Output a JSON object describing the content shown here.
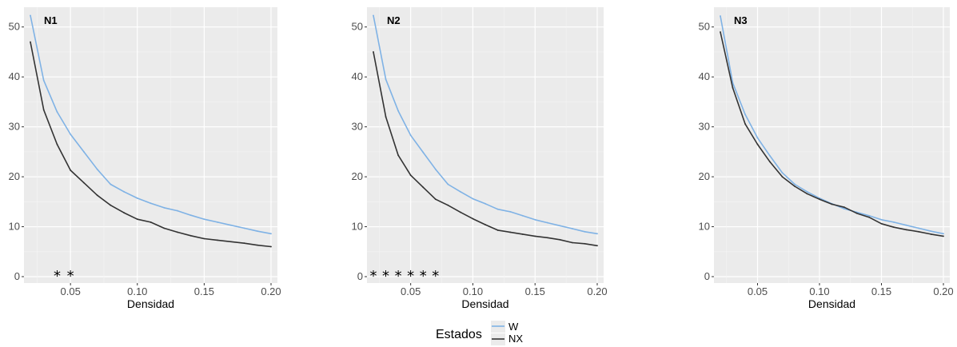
{
  "chart_data": [
    {
      "type": "line",
      "title": "N1",
      "xlabel": "Densidad",
      "ylabel": "",
      "xlim": [
        0.02,
        0.2
      ],
      "ylim": [
        0,
        53
      ],
      "xticks": [
        "0.05",
        "0.10",
        "0.15",
        "0.20"
      ],
      "yticks": [
        "0",
        "10",
        "20",
        "30",
        "40",
        "50"
      ],
      "grid": true,
      "x": [
        0.02,
        0.03,
        0.04,
        0.05,
        0.06,
        0.07,
        0.08,
        0.09,
        0.1,
        0.11,
        0.12,
        0.13,
        0.14,
        0.15,
        0.16,
        0.17,
        0.18,
        0.19,
        0.2
      ],
      "series": [
        {
          "name": "W",
          "color": "#7fb2e5",
          "values": [
            52.3,
            39.3,
            33.0,
            28.5,
            25.0,
            21.5,
            18.5,
            17.0,
            15.7,
            14.7,
            13.8,
            13.2,
            12.3,
            11.5,
            10.9,
            10.3,
            9.7,
            9.1,
            8.6
          ]
        },
        {
          "name": "NX",
          "color": "#333333",
          "values": [
            47.0,
            33.4,
            26.5,
            21.3,
            18.8,
            16.3,
            14.3,
            12.8,
            11.5,
            10.9,
            9.7,
            8.9,
            8.2,
            7.6,
            7.3,
            7.0,
            6.7,
            6.3,
            6.0
          ]
        }
      ],
      "annotations": [
        {
          "text": "*",
          "x": 0.04,
          "y": 0.5
        },
        {
          "text": "*",
          "x": 0.05,
          "y": 0.5
        }
      ]
    },
    {
      "type": "line",
      "title": "N2",
      "xlabel": "Densidad",
      "ylabel": "",
      "xlim": [
        0.02,
        0.2
      ],
      "ylim": [
        0,
        53
      ],
      "xticks": [
        "0.05",
        "0.10",
        "0.15",
        "0.20"
      ],
      "yticks": [
        "0",
        "10",
        "20",
        "30",
        "40",
        "50"
      ],
      "grid": true,
      "x": [
        0.02,
        0.03,
        0.04,
        0.05,
        0.06,
        0.07,
        0.08,
        0.09,
        0.1,
        0.11,
        0.12,
        0.13,
        0.14,
        0.15,
        0.16,
        0.17,
        0.18,
        0.19,
        0.2
      ],
      "series": [
        {
          "name": "W",
          "color": "#7fb2e5",
          "values": [
            52.3,
            39.5,
            33.2,
            28.3,
            24.9,
            21.5,
            18.5,
            17.0,
            15.6,
            14.6,
            13.5,
            13.0,
            12.2,
            11.4,
            10.8,
            10.2,
            9.6,
            9.0,
            8.6
          ]
        },
        {
          "name": "NX",
          "color": "#333333",
          "values": [
            45.0,
            32.0,
            24.3,
            20.3,
            17.9,
            15.5,
            14.3,
            12.9,
            11.6,
            10.4,
            9.3,
            8.9,
            8.5,
            8.1,
            7.8,
            7.4,
            6.8,
            6.6,
            6.2
          ]
        }
      ],
      "annotations": [
        {
          "text": "*",
          "x": 0.02,
          "y": 0.5
        },
        {
          "text": "*",
          "x": 0.03,
          "y": 0.5
        },
        {
          "text": "*",
          "x": 0.04,
          "y": 0.5
        },
        {
          "text": "*",
          "x": 0.05,
          "y": 0.5
        },
        {
          "text": "*",
          "x": 0.06,
          "y": 0.5
        },
        {
          "text": "*",
          "x": 0.07,
          "y": 0.5
        }
      ]
    },
    {
      "type": "line",
      "title": "N3",
      "xlabel": "Densidad",
      "ylabel": "",
      "xlim": [
        0.02,
        0.2
      ],
      "ylim": [
        0,
        53
      ],
      "xticks": [
        "0.05",
        "0.10",
        "0.15",
        "0.20"
      ],
      "yticks": [
        "0",
        "10",
        "20",
        "30",
        "40",
        "50"
      ],
      "grid": true,
      "x": [
        0.02,
        0.03,
        0.04,
        0.05,
        0.06,
        0.07,
        0.08,
        0.09,
        0.1,
        0.11,
        0.12,
        0.13,
        0.14,
        0.15,
        0.16,
        0.17,
        0.18,
        0.19,
        0.2
      ],
      "series": [
        {
          "name": "W",
          "color": "#7fb2e5",
          "values": [
            52.2,
            38.8,
            32.5,
            27.8,
            24.2,
            20.8,
            18.5,
            17.0,
            15.7,
            14.6,
            13.6,
            12.9,
            12.2,
            11.4,
            10.9,
            10.3,
            9.7,
            9.1,
            8.6
          ]
        },
        {
          "name": "NX",
          "color": "#333333",
          "values": [
            49.0,
            37.8,
            30.6,
            26.5,
            23.0,
            20.0,
            18.1,
            16.6,
            15.5,
            14.5,
            13.9,
            12.7,
            11.9,
            10.6,
            9.9,
            9.4,
            9.0,
            8.5,
            8.1
          ]
        }
      ],
      "annotations": []
    }
  ],
  "legend": {
    "title": "Estados",
    "placement": "bottom",
    "items": [
      {
        "label": "W",
        "color": "#7fb2e5"
      },
      {
        "label": "NX",
        "color": "#333333"
      }
    ]
  }
}
